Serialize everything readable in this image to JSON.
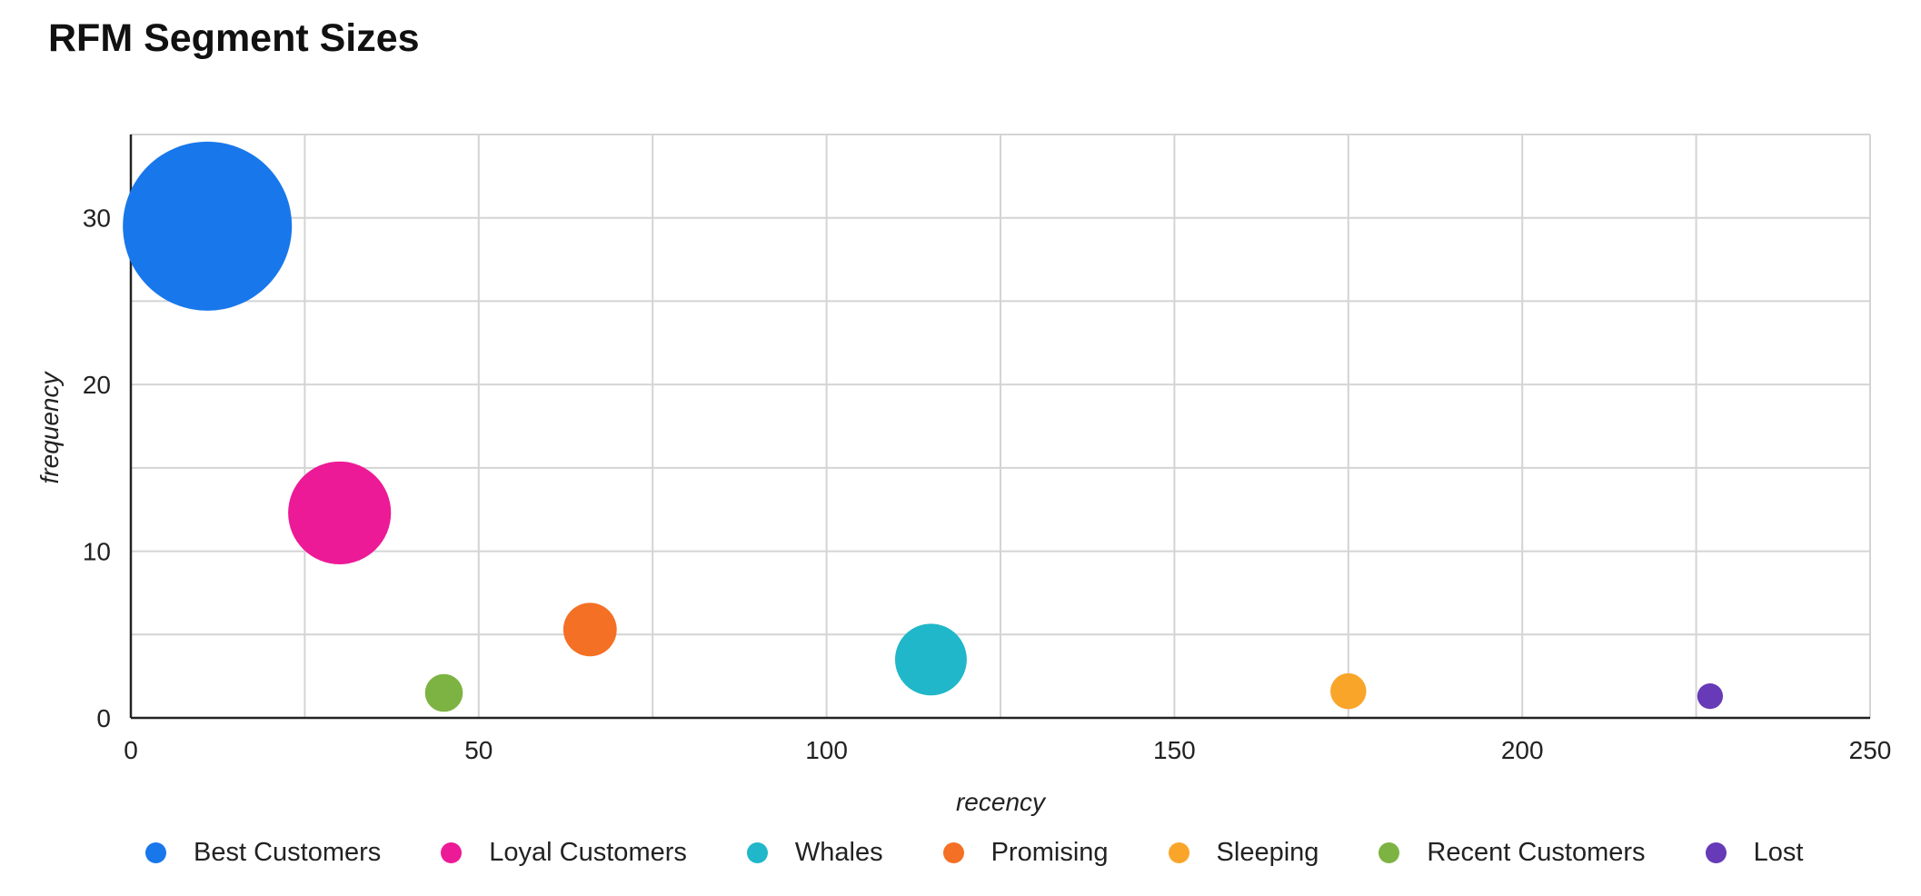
{
  "title": "RFM Segment Sizes",
  "chart_data": {
    "type": "scatter",
    "subtype": "bubble",
    "title": "RFM Segment Sizes",
    "xlabel": "recency",
    "ylabel": "frequency",
    "xlim": [
      0,
      250
    ],
    "ylim": [
      0,
      35
    ],
    "x_ticks": [
      0,
      50,
      100,
      150,
      200,
      250
    ],
    "y_ticks": [
      0,
      10,
      20,
      30
    ],
    "grid": true,
    "legend_position": "bottom",
    "series": [
      {
        "name": "Best Customers",
        "x": 11,
        "y": 29.5,
        "size": 100,
        "color": "#1877eb"
      },
      {
        "name": "Loyal Customers",
        "x": 30,
        "y": 12.3,
        "size": 37,
        "color": "#ec1a97"
      },
      {
        "name": "Whales",
        "x": 115,
        "y": 3.5,
        "size": 18,
        "color": "#1fb7c9"
      },
      {
        "name": "Promising",
        "x": 66,
        "y": 5.3,
        "size": 10,
        "color": "#f47024"
      },
      {
        "name": "Sleeping",
        "x": 175,
        "y": 1.6,
        "size": 4.5,
        "color": "#f9a52a"
      },
      {
        "name": "Recent Customers",
        "x": 45,
        "y": 1.5,
        "size": 5,
        "color": "#7cb342"
      },
      {
        "name": "Lost",
        "x": 227,
        "y": 1.3,
        "size": 2.3,
        "color": "#673ab7"
      }
    ]
  }
}
